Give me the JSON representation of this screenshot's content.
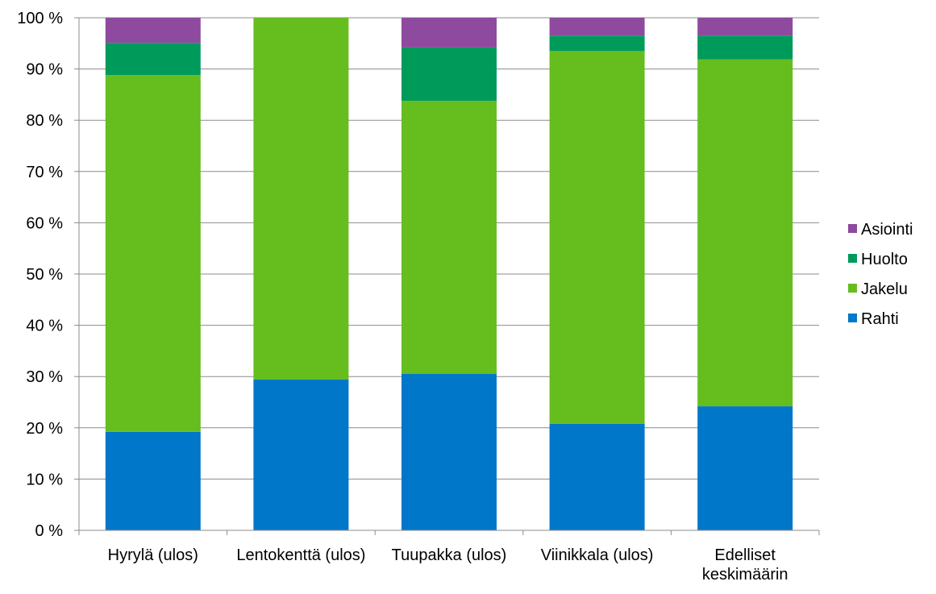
{
  "chart_data": {
    "type": "bar",
    "stacked": true,
    "categories": [
      "Hyrylä (ulos)",
      "Lentokenttä (ulos)",
      "Tuupakka (ulos)",
      "Viinikkala (ulos)",
      "Edelliset keskimäärin"
    ],
    "category_lines": [
      [
        "Hyrylä (ulos)"
      ],
      [
        "Lentokenttä (ulos)"
      ],
      [
        "Tuupakka (ulos)"
      ],
      [
        "Viinikkala (ulos)"
      ],
      [
        "Edelliset",
        "keskimäärin"
      ]
    ],
    "series": [
      {
        "name": "Rahti",
        "color": "#0077C8",
        "values": [
          19.2,
          29.4,
          30.5,
          20.8,
          24.2
        ]
      },
      {
        "name": "Jakelu",
        "color": "#66BD1E",
        "values": [
          69.6,
          70.6,
          53.3,
          72.7,
          67.7
        ]
      },
      {
        "name": "Huolto",
        "color": "#009A5B",
        "values": [
          6.3,
          0,
          10.4,
          3.0,
          4.6
        ]
      },
      {
        "name": "Asiointi",
        "color": "#8E4A9E",
        "values": [
          4.9,
          0,
          5.8,
          3.5,
          3.5
        ]
      }
    ],
    "ylim": [
      0,
      100
    ],
    "yticks": [
      0,
      10,
      20,
      30,
      40,
      50,
      60,
      70,
      80,
      90,
      100
    ],
    "ytick_labels": [
      "0 %",
      "10 %",
      "20 %",
      "30 %",
      "40 %",
      "50 %",
      "60 %",
      "70 %",
      "80 %",
      "90 %",
      "100 %"
    ],
    "grid": true,
    "legend_position": "right",
    "legend_order": [
      "Asiointi",
      "Huolto",
      "Jakelu",
      "Rahti"
    ],
    "title": "",
    "xlabel": "",
    "ylabel": ""
  }
}
